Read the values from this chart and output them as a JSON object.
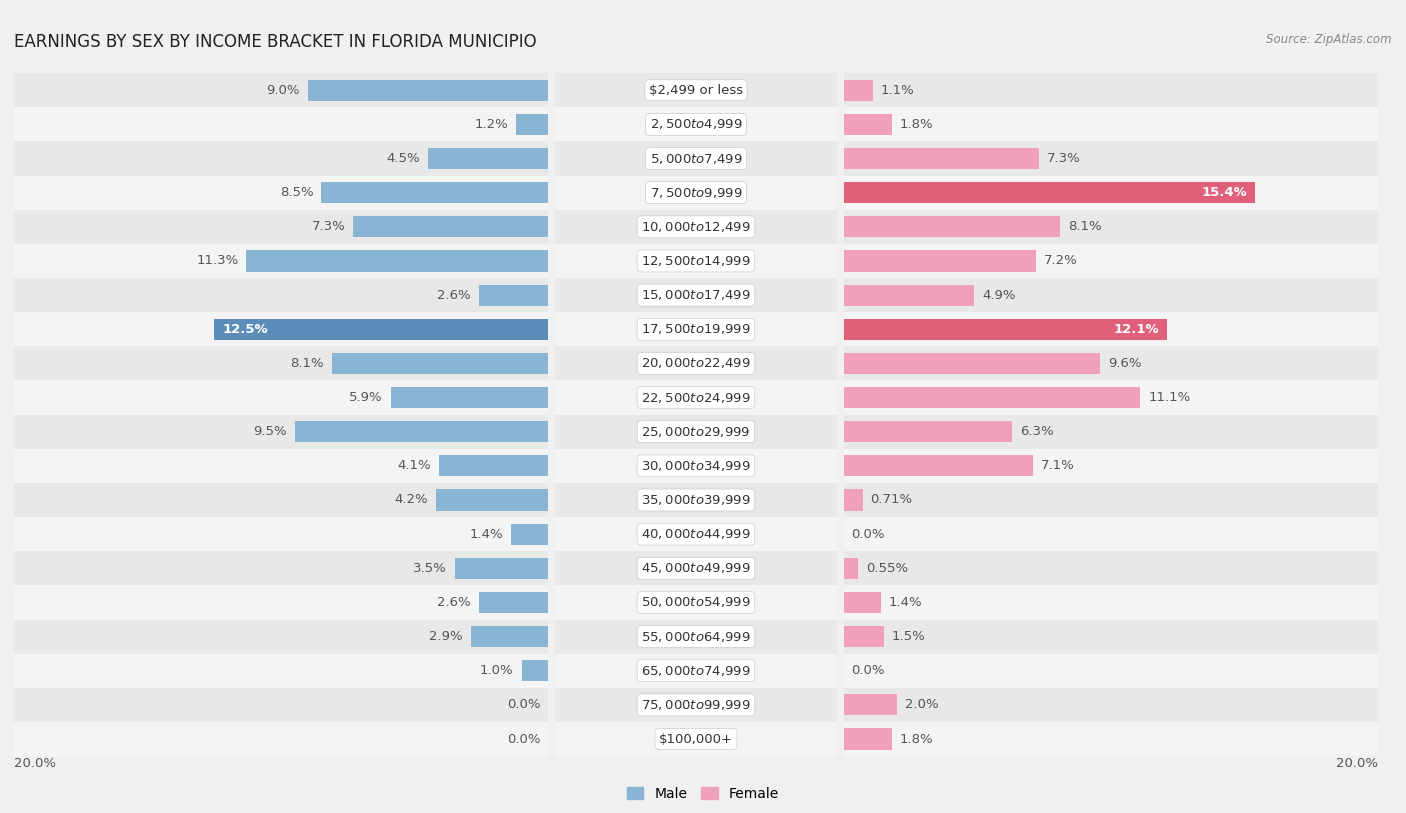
{
  "title": "EARNINGS BY SEX BY INCOME BRACKET IN FLORIDA MUNICIPIO",
  "source": "Source: ZipAtlas.com",
  "categories": [
    "$2,499 or less",
    "$2,500 to $4,999",
    "$5,000 to $7,499",
    "$7,500 to $9,999",
    "$10,000 to $12,499",
    "$12,500 to $14,999",
    "$15,000 to $17,499",
    "$17,500 to $19,999",
    "$20,000 to $22,499",
    "$22,500 to $24,999",
    "$25,000 to $29,999",
    "$30,000 to $34,999",
    "$35,000 to $39,999",
    "$40,000 to $44,999",
    "$45,000 to $49,999",
    "$50,000 to $54,999",
    "$55,000 to $64,999",
    "$65,000 to $74,999",
    "$75,000 to $99,999",
    "$100,000+"
  ],
  "male_values": [
    9.0,
    1.2,
    4.5,
    8.5,
    7.3,
    11.3,
    2.6,
    12.5,
    8.1,
    5.9,
    9.5,
    4.1,
    4.2,
    1.4,
    3.5,
    2.6,
    2.9,
    1.0,
    0.0,
    0.0
  ],
  "female_values": [
    1.1,
    1.8,
    7.3,
    15.4,
    8.1,
    7.2,
    4.9,
    12.1,
    9.6,
    11.1,
    6.3,
    7.1,
    0.71,
    0.0,
    0.55,
    1.4,
    1.5,
    0.0,
    2.0,
    1.8
  ],
  "male_color": "#8ab4d4",
  "female_color": "#f0a0b8",
  "male_highlight_color": "#5b8db8",
  "female_highlight_color": "#e0607a",
  "bg_color": "#f0f0f0",
  "row_odd_color": "#e8e8e8",
  "row_even_color": "#f4f4f4",
  "xlim": 20.0,
  "bar_height": 0.62,
  "title_fontsize": 12,
  "label_fontsize": 9.5,
  "category_fontsize": 9.5,
  "legend_fontsize": 10
}
